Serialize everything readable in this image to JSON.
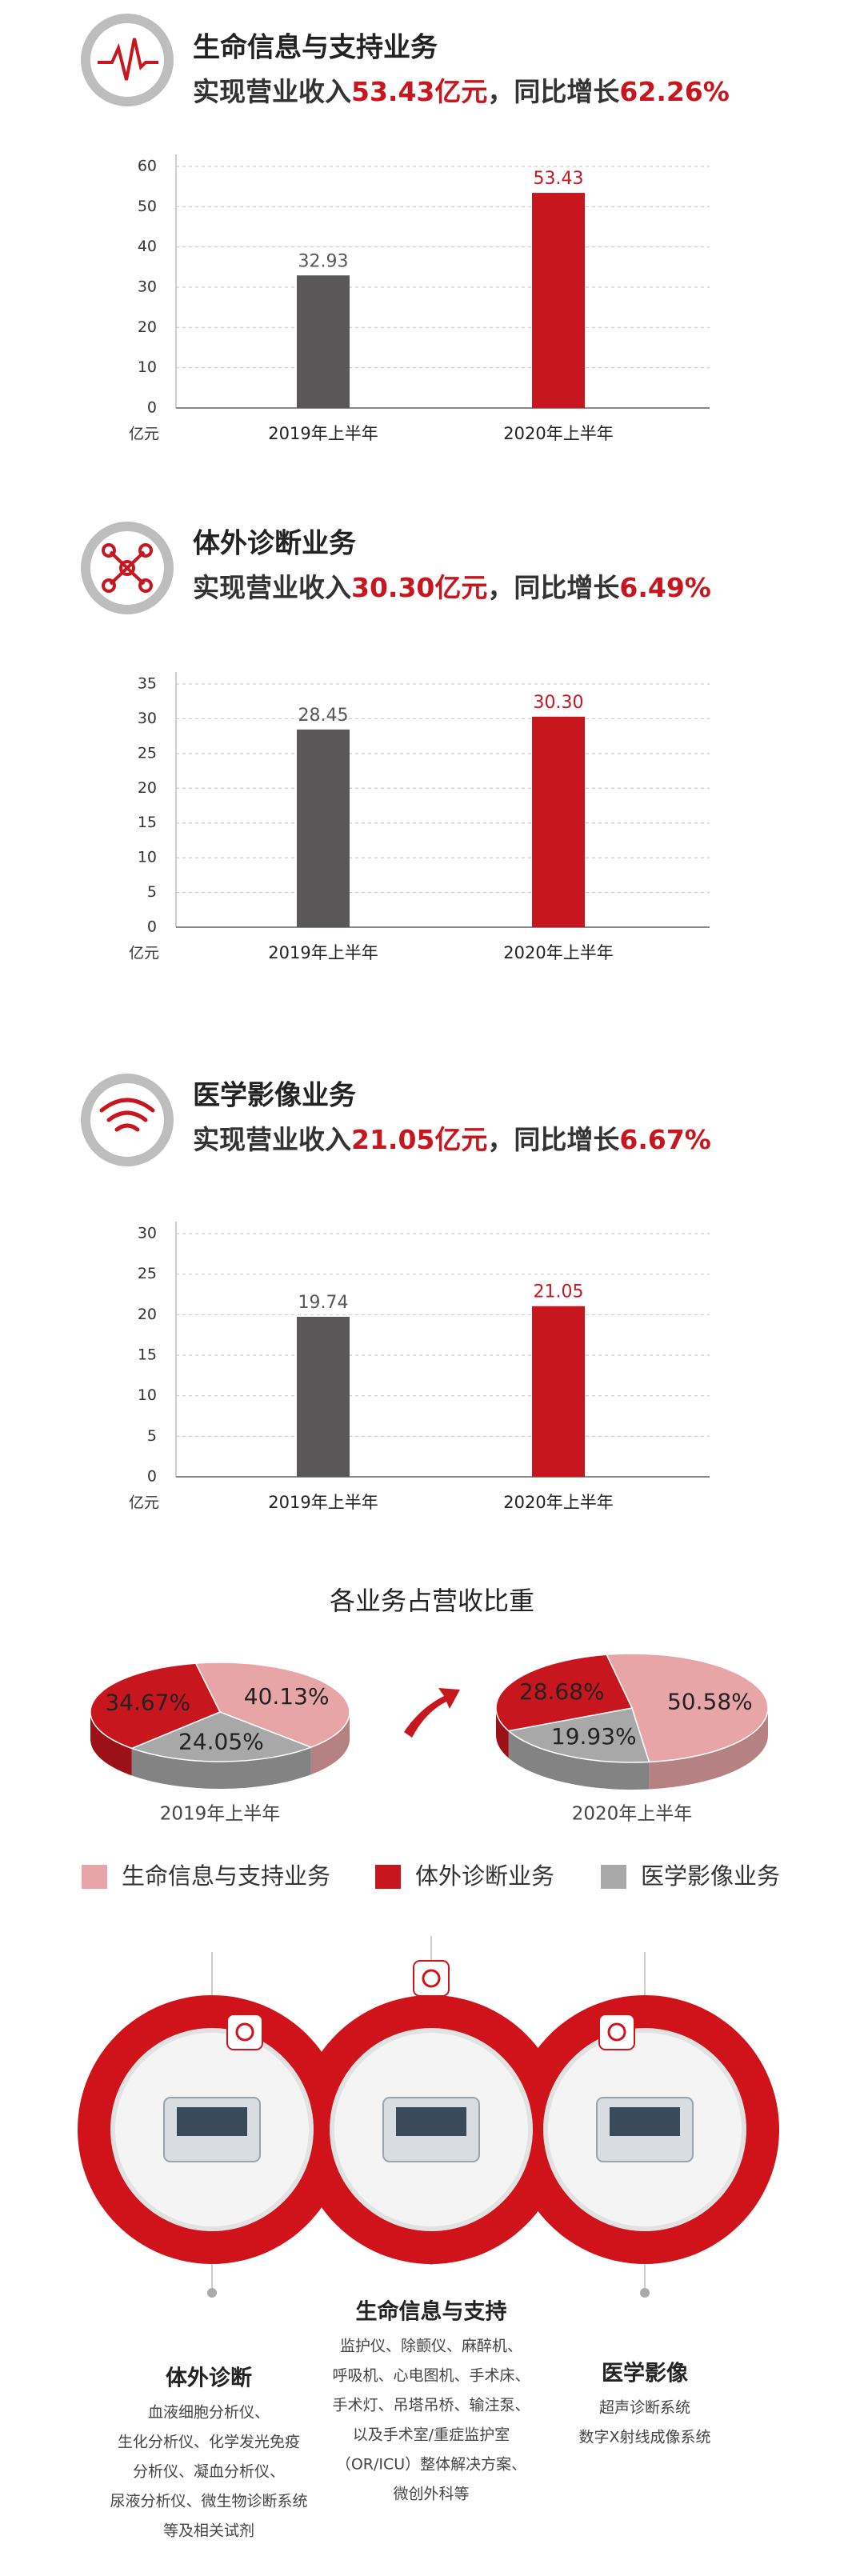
{
  "chart_data": [
    {
      "type": "bar",
      "title": "生命信息与支持业务",
      "subtitle": [
        "实现营业收入",
        "53.43亿元",
        "，同比增长",
        "62.26%"
      ],
      "y_unit": "亿元",
      "categories": [
        "2019年上半年",
        "2020年上半年"
      ],
      "values": [
        32.93,
        53.43
      ],
      "colors": [
        "#595757",
        "#c8161e"
      ],
      "ylim": [
        0,
        60
      ],
      "yticks": [
        0,
        10,
        20,
        30,
        40,
        50,
        60
      ],
      "grid": true
    },
    {
      "type": "bar",
      "title": "体外诊断业务",
      "subtitle": [
        "实现营业收入",
        "30.30亿元",
        "，同比增长",
        "6.49%"
      ],
      "y_unit": "亿元",
      "categories": [
        "2019年上半年",
        "2020年上半年"
      ],
      "values": [
        28.45,
        30.3
      ],
      "value_labels": [
        "28.45",
        "30.30"
      ],
      "colors": [
        "#595757",
        "#c8161e"
      ],
      "ylim": [
        0,
        35
      ],
      "yticks": [
        0,
        5,
        10,
        15,
        20,
        25,
        30,
        35
      ],
      "grid": true
    },
    {
      "type": "bar",
      "title": "医学影像业务",
      "subtitle": [
        "实现营业收入",
        "21.05亿元",
        "，同比增长",
        "6.67%"
      ],
      "y_unit": "亿元",
      "categories": [
        "2019年上半年",
        "2020年上半年"
      ],
      "values": [
        19.74,
        21.05
      ],
      "colors": [
        "#595757",
        "#c8161e"
      ],
      "ylim": [
        0,
        30
      ],
      "yticks": [
        0,
        5,
        10,
        15,
        20,
        25,
        30
      ],
      "grid": true
    },
    {
      "type": "pie",
      "caption": "2019年上半年",
      "categories": [
        "生命信息与支持业务",
        "体外诊断业务",
        "医学影像业务"
      ],
      "values": [
        40.13,
        34.67,
        24.05
      ],
      "value_labels": [
        "40.13%",
        "34.67%",
        "24.05%"
      ],
      "colors": [
        "#e8a5a8",
        "#c8161e",
        "#a8a8a8"
      ]
    },
    {
      "type": "pie",
      "caption": "2020年上半年",
      "categories": [
        "生命信息与支持业务",
        "体外诊断业务",
        "医学影像业务"
      ],
      "values": [
        50.58,
        28.68,
        19.93
      ],
      "value_labels": [
        "50.58%",
        "28.68%",
        "19.93%"
      ],
      "colors": [
        "#e8a5a8",
        "#c8161e",
        "#a8a8a8"
      ]
    }
  ],
  "pie_section_title": "各业务占营收比重",
  "products": [
    {
      "name": "体外诊断",
      "lines": [
        "血液细胞分析仪、",
        "生化分析仪、化学发光免疫",
        "分析仪、凝血分析仪、",
        "尿液分析仪、微生物诊断系统",
        "等及相关试剂"
      ]
    },
    {
      "name": "生命信息与支持",
      "lines": [
        "监护仪、除颤仪、麻醉机、",
        "呼吸机、心电图机、手术床、",
        "手术灯、吊塔吊桥、输注泵、",
        "以及手术室/重症监护室",
        "（OR/ICU）整体解决方案、",
        "微创外科等"
      ]
    },
    {
      "name": "医学影像",
      "lines": [
        "超声诊断系统",
        "数字X射线成像系统"
      ]
    }
  ]
}
